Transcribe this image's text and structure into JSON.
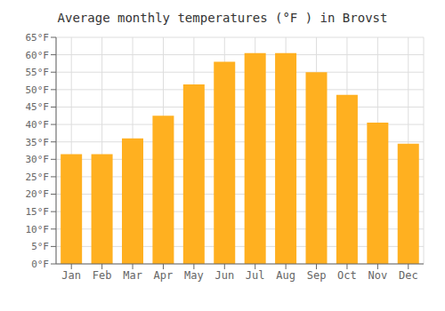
{
  "chart_data": {
    "type": "bar",
    "title": "Average monthly temperatures (°F ) in Brovst",
    "categories": [
      "Jan",
      "Feb",
      "Mar",
      "Apr",
      "May",
      "Jun",
      "Jul",
      "Aug",
      "Sep",
      "Oct",
      "Nov",
      "Dec"
    ],
    "values": [
      31.5,
      31.5,
      36.0,
      42.5,
      51.5,
      58.0,
      60.5,
      60.5,
      55.0,
      48.5,
      40.5,
      34.5
    ],
    "color": "#FFB020",
    "ylim": [
      0,
      65
    ],
    "yticks": [
      {
        "value": 0,
        "label": "0°F"
      },
      {
        "value": 5,
        "label": "5°F"
      },
      {
        "value": 10,
        "label": "10°F"
      },
      {
        "value": 15,
        "label": "15°F"
      },
      {
        "value": 20,
        "label": "20°F"
      },
      {
        "value": 25,
        "label": "25°F"
      },
      {
        "value": 30,
        "label": "30°F"
      },
      {
        "value": 35,
        "label": "35°F"
      },
      {
        "value": 40,
        "label": "40°F"
      },
      {
        "value": 45,
        "label": "45°F"
      },
      {
        "value": 50,
        "label": "50°F"
      },
      {
        "value": 55,
        "label": "55°F"
      },
      {
        "value": 60,
        "label": "60°F"
      },
      {
        "value": 65,
        "label": "65°F"
      }
    ],
    "grid": true
  }
}
